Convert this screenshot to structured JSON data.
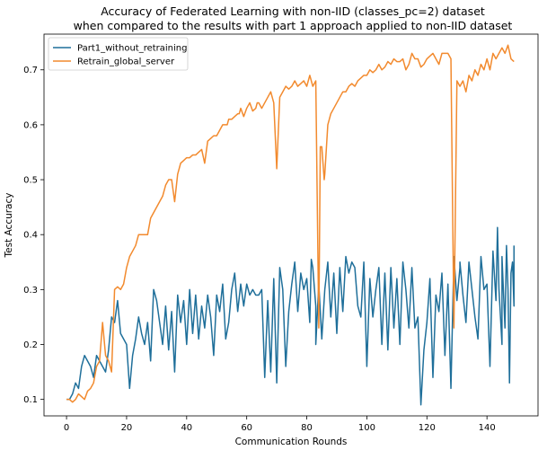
{
  "chart_data": {
    "type": "line",
    "title": "Accuracy of Federated Learning with non-IID (classes_pc=2) dataset",
    "subtitle": "when compared to the results with part 1 approach applied to non-IID dataset",
    "xlabel": "Communication Rounds",
    "ylabel": "Test Accuracy",
    "xlim": [
      -7.5,
      157
    ],
    "ylim": [
      0.07,
      0.765
    ],
    "xticks": [
      0,
      20,
      40,
      60,
      80,
      100,
      120,
      140
    ],
    "yticks": [
      0.1,
      0.2,
      0.3,
      0.4,
      0.5,
      0.6,
      0.7
    ],
    "ytick_labels": [
      "0.1",
      "0.2",
      "0.3",
      "0.4",
      "0.5",
      "0.6",
      "0.7"
    ],
    "grid": false,
    "legend_position": "top-left",
    "series": [
      {
        "name": "Part1_without_retraining",
        "color": "#1f6f9a",
        "x": [
          0,
          1,
          2,
          3,
          4,
          5,
          6,
          7,
          8,
          9,
          10,
          11,
          12,
          13,
          14,
          15,
          16,
          17,
          18,
          19,
          20,
          21,
          22,
          23,
          24,
          25,
          26,
          27,
          28,
          29,
          30,
          31,
          32,
          33,
          34,
          35,
          36,
          37,
          38,
          39,
          40,
          41,
          42,
          43,
          44,
          45,
          46,
          47,
          48,
          49,
          50,
          51,
          52,
          53,
          54,
          55,
          56,
          57,
          58,
          59,
          60,
          61,
          62,
          63,
          64,
          65,
          66,
          67,
          68,
          69,
          70,
          71,
          72,
          73,
          74,
          75,
          76,
          77,
          78,
          79,
          80,
          81,
          82,
          83,
          84,
          85,
          86,
          87,
          88,
          89,
          90,
          91,
          92,
          93,
          94,
          95,
          96,
          97,
          98,
          99,
          100,
          101,
          102,
          103,
          104,
          105,
          106,
          107,
          108,
          109,
          110,
          111,
          112,
          113,
          114,
          115,
          116,
          117,
          118,
          119,
          120,
          121,
          122,
          123,
          124,
          125,
          126,
          127,
          128,
          129,
          130,
          131,
          132,
          133,
          134,
          135,
          136,
          137,
          138,
          139,
          140,
          141,
          142,
          143,
          144,
          145,
          146,
          147,
          148,
          149
        ],
        "values": [
          0.1,
          0.1,
          0.11,
          0.13,
          0.12,
          0.16,
          0.18,
          0.17,
          0.16,
          0.14,
          0.18,
          0.17,
          0.16,
          0.15,
          0.19,
          0.25,
          0.24,
          0.28,
          0.22,
          0.21,
          0.2,
          0.12,
          0.18,
          0.21,
          0.25,
          0.22,
          0.2,
          0.24,
          0.17,
          0.3,
          0.28,
          0.24,
          0.2,
          0.27,
          0.19,
          0.26,
          0.15,
          0.29,
          0.24,
          0.28,
          0.2,
          0.3,
          0.22,
          0.29,
          0.21,
          0.27,
          0.23,
          0.29,
          0.25,
          0.18,
          0.29,
          0.26,
          0.31,
          0.21,
          0.24,
          0.3,
          0.33,
          0.26,
          0.31,
          0.27,
          0.31,
          0.29,
          0.3,
          0.29,
          0.29,
          0.3,
          0.14,
          0.28,
          0.15,
          0.32,
          0.13,
          0.34,
          0.3,
          0.16,
          0.26,
          0.31,
          0.35,
          0.26,
          0.33,
          0.3,
          0.32,
          0.24,
          0.34,
          0.27,
          0.31,
          0.21,
          0.3,
          0.35,
          0.25,
          0.33,
          0.22,
          0.34,
          0.26,
          0.36,
          0.33,
          0.35,
          0.34,
          0.27,
          0.25,
          0.35,
          0.16,
          0.32,
          0.25,
          0.3,
          0.34,
          0.2,
          0.33,
          0.19,
          0.34,
          0.23,
          0.32,
          0.2,
          0.35,
          0.3,
          0.23,
          0.34,
          0.23,
          0.25,
          0.09,
          0.19,
          0.24,
          0.32,
          0.14,
          0.29,
          0.26,
          0.33,
          0.18,
          0.31,
          0.12,
          0.36,
          0.28,
          0.34,
          0.29,
          0.24,
          0.35,
          0.3,
          0.25,
          0.21,
          0.36,
          0.3,
          0.31,
          0.16,
          0.37,
          0.28,
          0.3,
          0.2,
          0.23,
          0.3,
          0.33,
          0.27
        ],
        "extra_points": [
          [
            81.5,
            0.355
          ],
          [
            83.0,
            0.2
          ],
          [
            131.0,
            0.35
          ],
          [
            143.5,
            0.413
          ],
          [
            145.0,
            0.36
          ],
          [
            146.5,
            0.38
          ],
          [
            147.5,
            0.13
          ],
          [
            148.5,
            0.35
          ],
          [
            149.0,
            0.38
          ]
        ]
      },
      {
        "name": "Retrain_global_server",
        "color": "#f28a2e",
        "x": [
          0,
          1,
          2,
          3,
          4,
          5,
          6,
          7,
          8,
          9,
          10,
          11,
          12,
          13,
          14,
          15,
          16,
          17,
          18,
          19,
          20,
          21,
          22,
          23,
          24,
          25,
          26,
          27,
          28,
          29,
          30,
          31,
          32,
          33,
          34,
          35,
          36,
          37,
          38,
          39,
          40,
          41,
          42,
          43,
          44,
          45,
          46,
          47,
          48,
          49,
          50,
          51,
          52,
          53,
          54,
          55,
          56,
          57,
          58,
          59,
          60,
          61,
          62,
          63,
          64,
          65,
          66,
          67,
          68,
          69,
          70,
          71,
          72,
          73,
          74,
          75,
          76,
          77,
          78,
          79,
          80,
          81,
          82,
          83,
          84,
          85,
          86,
          87,
          88,
          89,
          90,
          91,
          92,
          93,
          94,
          95,
          96,
          97,
          98,
          99,
          100,
          101,
          102,
          103,
          104,
          105,
          106,
          107,
          108,
          109,
          110,
          111,
          112,
          113,
          114,
          115,
          116,
          117,
          118,
          119,
          120,
          121,
          122,
          123,
          124,
          125,
          126,
          127,
          128,
          129,
          130,
          131,
          132,
          133,
          134,
          135,
          136,
          137,
          138,
          139,
          140,
          141,
          142,
          143,
          144,
          145,
          146,
          147,
          148,
          149
        ],
        "values": [
          0.1,
          0.1,
          0.095,
          0.1,
          0.11,
          0.105,
          0.1,
          0.115,
          0.12,
          0.13,
          0.16,
          0.17,
          0.24,
          0.18,
          0.17,
          0.15,
          0.3,
          0.305,
          0.3,
          0.31,
          0.34,
          0.36,
          0.37,
          0.38,
          0.4,
          0.4,
          0.4,
          0.4,
          0.43,
          0.44,
          0.45,
          0.46,
          0.47,
          0.49,
          0.5,
          0.5,
          0.46,
          0.51,
          0.53,
          0.535,
          0.54,
          0.54,
          0.545,
          0.545,
          0.55,
          0.555,
          0.53,
          0.57,
          0.575,
          0.58,
          0.58,
          0.59,
          0.6,
          0.6,
          0.61,
          0.61,
          0.615,
          0.62,
          0.63,
          0.615,
          0.63,
          0.64,
          0.625,
          0.63,
          0.64,
          0.63,
          0.64,
          0.65,
          0.66,
          0.64,
          0.52,
          0.65,
          0.66,
          0.67,
          0.665,
          0.67,
          0.68,
          0.67,
          0.675,
          0.68,
          0.67,
          0.69,
          0.67,
          0.68,
          0.23,
          0.56,
          0.51,
          0.6,
          0.62,
          0.63,
          0.64,
          0.65,
          0.66,
          0.66,
          0.67,
          0.675,
          0.67,
          0.68,
          0.685,
          0.69,
          0.69,
          0.7,
          0.695,
          0.7,
          0.71,
          0.7,
          0.705,
          0.715,
          0.71,
          0.72,
          0.715,
          0.715,
          0.72,
          0.7,
          0.71,
          0.73,
          0.72,
          0.72,
          0.705,
          0.71,
          0.72,
          0.725,
          0.73,
          0.72,
          0.71,
          0.73,
          0.73,
          0.73,
          0.72,
          0.23,
          0.68,
          0.67,
          0.68,
          0.66,
          0.69,
          0.68,
          0.7,
          0.69,
          0.71,
          0.7,
          0.72,
          0.7,
          0.73,
          0.72,
          0.73,
          0.74,
          0.73,
          0.745,
          0.72,
          0.715
        ],
        "extra_points": [
          [
            53.5,
            0.6
          ],
          [
            57.5,
            0.62
          ],
          [
            63.5,
            0.64
          ],
          [
            84.5,
            0.56
          ],
          [
            85.8,
            0.5
          ]
        ]
      }
    ]
  }
}
